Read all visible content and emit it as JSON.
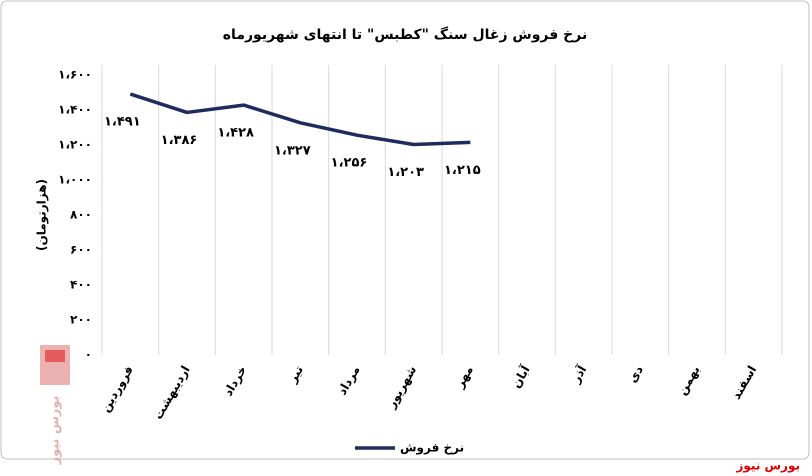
{
  "chart_data": {
    "type": "line",
    "title": "نرخ فروش زغال سنگ \"کطبس\" تا انتهای شهریورماه",
    "y_label": "(هزارتومان)",
    "categories": [
      "فروردین",
      "اردیبهشت",
      "خرداد",
      "تیر",
      "مرداد",
      "شهریور",
      "مهر",
      "آبان",
      "آذر",
      "دی",
      "بهمن",
      "اسفند"
    ],
    "series": [
      {
        "name": "نرخ فروش",
        "color": "#1f2b5e",
        "values": [
          1491,
          1386,
          1428,
          1327,
          1256,
          1203,
          1215,
          null,
          null,
          null,
          null,
          null
        ],
        "value_labels": [
          "۱،۴۹۱",
          "۱،۳۸۶",
          "۱،۴۲۸",
          "۱،۳۲۷",
          "۱،۲۵۶",
          "۱،۲۰۳",
          "۱،۲۱۵",
          null,
          null,
          null,
          null,
          null
        ]
      }
    ],
    "ylim": [
      0,
      1600
    ],
    "yticks": [
      {
        "value": 0,
        "label": "۰"
      },
      {
        "value": 200,
        "label": "۲۰۰"
      },
      {
        "value": 400,
        "label": "۴۰۰"
      },
      {
        "value": 600,
        "label": "۶۰۰"
      },
      {
        "value": 800,
        "label": "۸۰۰"
      },
      {
        "value": 1000,
        "label": "۱،۰۰۰"
      },
      {
        "value": 1200,
        "label": "۱،۲۰۰"
      },
      {
        "value": 1400,
        "label": "۱،۴۰۰"
      },
      {
        "value": 1600,
        "label": "۱،۶۰۰"
      }
    ],
    "grid": "vertical",
    "legend": "bottom",
    "source": "بورس نیوز"
  }
}
